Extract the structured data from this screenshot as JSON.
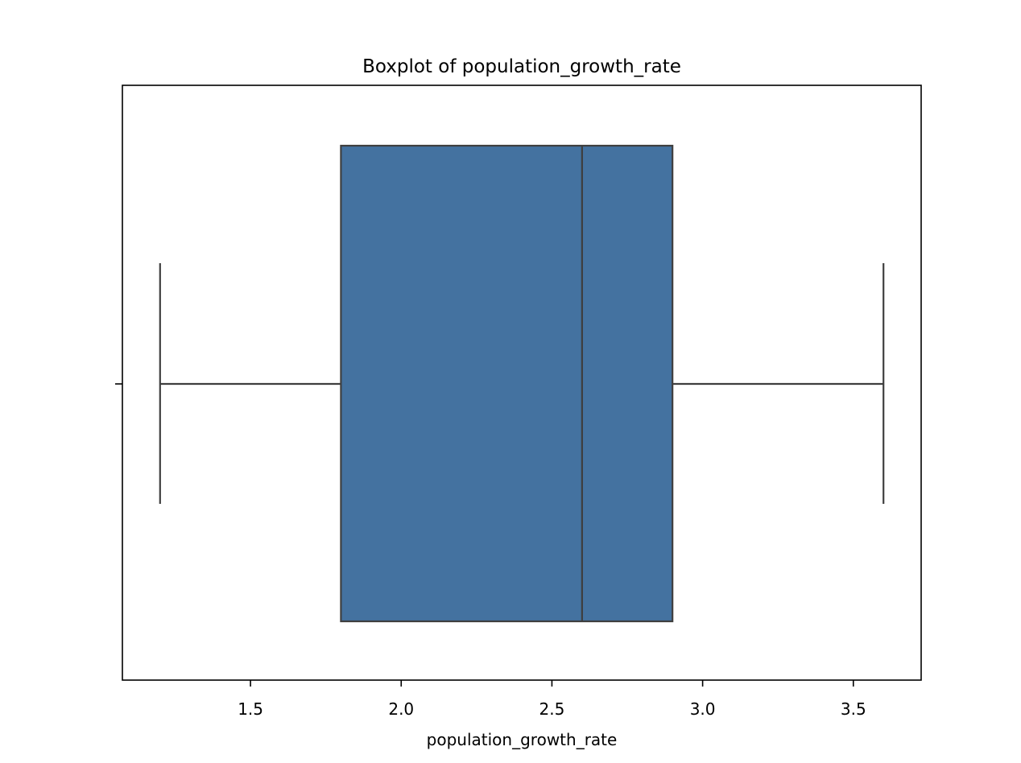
{
  "chart_data": {
    "type": "box",
    "title": "Boxplot of population_growth_rate",
    "xlabel": "population_growth_rate",
    "ylabel": "",
    "xlim": [
      1.075,
      3.725
    ],
    "xticks": [
      1.5,
      2.0,
      2.5,
      3.0,
      3.5
    ],
    "xtick_labels": [
      "1.5",
      "2.0",
      "2.5",
      "3.0",
      "3.5"
    ],
    "grid": false,
    "box": {
      "whisker_low": 1.2,
      "q1": 1.8,
      "median": 2.6,
      "q3": 2.9,
      "whisker_high": 3.6
    },
    "colors": {
      "box_fill": "#4472a0",
      "line": "#3f3f3f",
      "axes": "#000000"
    }
  }
}
